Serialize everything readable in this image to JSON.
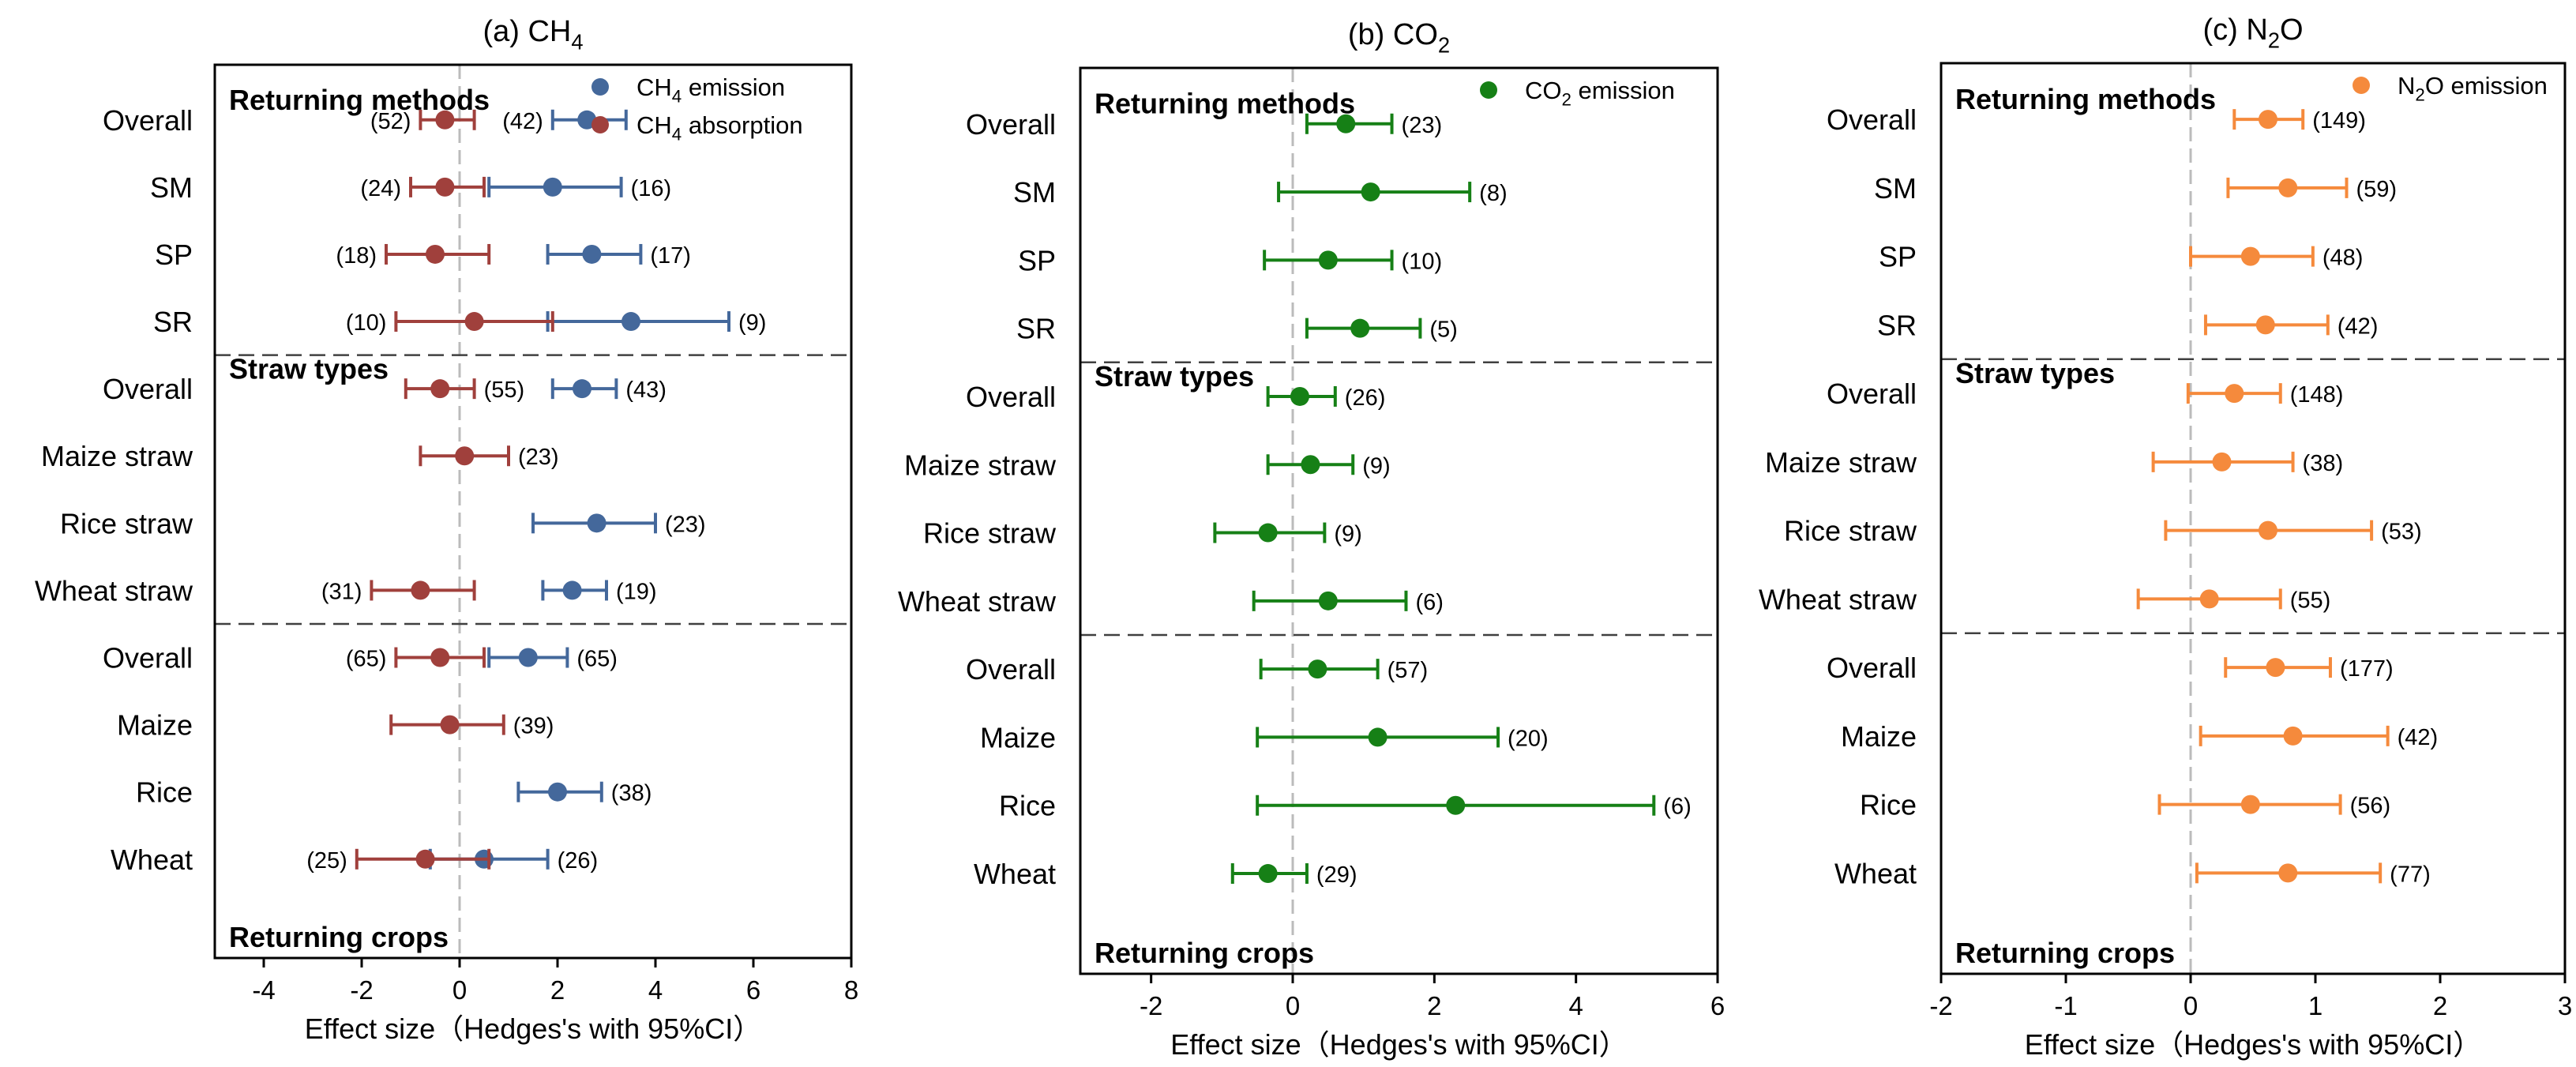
{
  "colors": {
    "ch4_emission": "#44689B",
    "ch4_absorption": "#A0403C",
    "co2_emission": "#168016",
    "n2o_emission": "#F58A3C",
    "zero_line": "#BBBBBB",
    "frame": "#000000",
    "separator": "#404040"
  },
  "chart_data": [
    {
      "type": "forest",
      "title": "(a) CH4",
      "title_parts": {
        "prefix": "(a) CH",
        "sub": "4"
      },
      "xlabel": "Effect size（Hedges's with 95%CI）",
      "xlim": [
        -5,
        8
      ],
      "xticks": [
        -4,
        -2,
        0,
        2,
        4,
        6,
        8
      ],
      "xtick_labels": [
        "-4",
        "-2",
        "0",
        "2",
        "4",
        "6",
        "8"
      ],
      "rows": [
        "Overall",
        "SM",
        "SP",
        "SR",
        "Overall",
        "Maize straw",
        "Rice straw",
        "Wheat straw",
        "Overall",
        "Maize",
        "Rice",
        "Wheat"
      ],
      "groups": [
        {
          "label": "Returning methods",
          "label_pos": "top",
          "rows": [
            0,
            3
          ]
        },
        {
          "label": "Straw types",
          "label_pos": "top",
          "rows": [
            4,
            7
          ]
        },
        {
          "label": "Returning crops",
          "label_pos": "bottom",
          "rows": [
            8,
            11
          ]
        }
      ],
      "legend": [
        {
          "prefix": "CH",
          "sub": "4",
          "suffix": " emission",
          "series": "emission"
        },
        {
          "prefix": "CH",
          "sub": "4",
          "suffix": " absorption",
          "series": "absorption"
        }
      ],
      "series": [
        {
          "name": "CH4 emission",
          "key": "emission",
          "color": "#44689B",
          "points": [
            {
              "row": 0,
              "mean": 2.6,
              "low": 1.9,
              "high": 3.4,
              "n": "(42)",
              "label_side": "left"
            },
            {
              "row": 1,
              "mean": 1.9,
              "low": 0.6,
              "high": 3.3,
              "n": "(16)",
              "label_side": "right"
            },
            {
              "row": 2,
              "mean": 2.7,
              "low": 1.8,
              "high": 3.7,
              "n": "(17)",
              "label_side": "right"
            },
            {
              "row": 3,
              "mean": 3.5,
              "low": 1.8,
              "high": 5.5,
              "n": "(9)",
              "label_side": "right"
            },
            {
              "row": 4,
              "mean": 2.5,
              "low": 1.9,
              "high": 3.2,
              "n": "(43)",
              "label_side": "right"
            },
            {
              "row": 6,
              "mean": 2.8,
              "low": 1.5,
              "high": 4.0,
              "n": "(23)",
              "label_side": "right"
            },
            {
              "row": 7,
              "mean": 2.3,
              "low": 1.7,
              "high": 3.0,
              "n": "(19)",
              "label_side": "right"
            },
            {
              "row": 8,
              "mean": 1.4,
              "low": 0.6,
              "high": 2.2,
              "n": "(65)",
              "label_side": "right"
            },
            {
              "row": 10,
              "mean": 2.0,
              "low": 1.2,
              "high": 2.9,
              "n": "(38)",
              "label_side": "right"
            },
            {
              "row": 11,
              "mean": 0.5,
              "low": -0.6,
              "high": 1.8,
              "n": "(26)",
              "label_side": "right"
            }
          ]
        },
        {
          "name": "CH4 absorption",
          "key": "absorption",
          "color": "#A0403C",
          "points": [
            {
              "row": 0,
              "mean": -0.3,
              "low": -0.8,
              "high": 0.3,
              "n": "(52)",
              "label_side": "left"
            },
            {
              "row": 1,
              "mean": -0.3,
              "low": -1.0,
              "high": 0.5,
              "n": "(24)",
              "label_side": "left"
            },
            {
              "row": 2,
              "mean": -0.5,
              "low": -1.5,
              "high": 0.6,
              "n": "(18)",
              "label_side": "left"
            },
            {
              "row": 3,
              "mean": 0.3,
              "low": -1.3,
              "high": 1.9,
              "n": "(10)",
              "label_side": "left"
            },
            {
              "row": 4,
              "mean": -0.4,
              "low": -1.1,
              "high": 0.3,
              "n": "(55)",
              "label_side": "right"
            },
            {
              "row": 5,
              "mean": 0.1,
              "low": -0.8,
              "high": 1.0,
              "n": "(23)",
              "label_side": "right"
            },
            {
              "row": 7,
              "mean": -0.8,
              "low": -1.8,
              "high": 0.3,
              "n": "(31)",
              "label_side": "left"
            },
            {
              "row": 8,
              "mean": -0.4,
              "low": -1.3,
              "high": 0.5,
              "n": "(65)",
              "label_side": "left"
            },
            {
              "row": 9,
              "mean": -0.2,
              "low": -1.4,
              "high": 0.9,
              "n": "(39)",
              "label_side": "right"
            },
            {
              "row": 11,
              "mean": -0.7,
              "low": -2.1,
              "high": 0.6,
              "n": "(25)",
              "label_side": "left"
            }
          ]
        }
      ]
    },
    {
      "type": "forest",
      "title": "(b) CO2",
      "title_parts": {
        "prefix": "(b) CO",
        "sub": "2"
      },
      "xlabel": "Effect size（Hedges's with 95%CI）",
      "xlim": [
        -3,
        6
      ],
      "xticks": [
        -2,
        0,
        2,
        4,
        6
      ],
      "xtick_labels": [
        "-2",
        "0",
        "2",
        "4",
        "6"
      ],
      "rows": [
        "Overall",
        "SM",
        "SP",
        "SR",
        "Overall",
        "Maize straw",
        "Rice straw",
        "Wheat straw",
        "Overall",
        "Maize",
        "Rice",
        "Wheat"
      ],
      "groups": [
        {
          "label": "Returning methods",
          "label_pos": "top",
          "rows": [
            0,
            3
          ]
        },
        {
          "label": "Straw types",
          "label_pos": "top",
          "rows": [
            4,
            7
          ]
        },
        {
          "label": "Returning crops",
          "label_pos": "bottom",
          "rows": [
            8,
            11
          ]
        }
      ],
      "legend": [
        {
          "prefix": "CO",
          "sub": "2",
          "suffix": " emission",
          "series": "emission"
        }
      ],
      "series": [
        {
          "name": "CO2 emission",
          "key": "emission",
          "color": "#168016",
          "points": [
            {
              "row": 0,
              "mean": 0.75,
              "low": 0.2,
              "high": 1.4,
              "n": "(23)",
              "label_side": "right"
            },
            {
              "row": 1,
              "mean": 1.1,
              "low": -0.2,
              "high": 2.5,
              "n": "(8)",
              "label_side": "right"
            },
            {
              "row": 2,
              "mean": 0.5,
              "low": -0.4,
              "high": 1.4,
              "n": "(10)",
              "label_side": "right"
            },
            {
              "row": 3,
              "mean": 0.95,
              "low": 0.2,
              "high": 1.8,
              "n": "(5)",
              "label_side": "right"
            },
            {
              "row": 4,
              "mean": 0.1,
              "low": -0.35,
              "high": 0.6,
              "n": "(26)",
              "label_side": "right"
            },
            {
              "row": 5,
              "mean": 0.25,
              "low": -0.35,
              "high": 0.85,
              "n": "(9)",
              "label_side": "right"
            },
            {
              "row": 6,
              "mean": -0.35,
              "low": -1.1,
              "high": 0.45,
              "n": "(9)",
              "label_side": "right"
            },
            {
              "row": 7,
              "mean": 0.5,
              "low": -0.55,
              "high": 1.6,
              "n": "(6)",
              "label_side": "right"
            },
            {
              "row": 8,
              "mean": 0.35,
              "low": -0.45,
              "high": 1.2,
              "n": "(57)",
              "label_side": "right"
            },
            {
              "row": 9,
              "mean": 1.2,
              "low": -0.5,
              "high": 2.9,
              "n": "(20)",
              "label_side": "right"
            },
            {
              "row": 10,
              "mean": 2.3,
              "low": -0.5,
              "high": 5.1,
              "n": "(6)",
              "label_side": "right"
            },
            {
              "row": 11,
              "mean": -0.35,
              "low": -0.85,
              "high": 0.2,
              "n": "(29)",
              "label_side": "right"
            }
          ]
        }
      ]
    },
    {
      "type": "forest",
      "title": "(c) N2O",
      "title_parts": {
        "prefix": "(c) N",
        "sub": "2",
        "suffix": "O"
      },
      "xlabel": "Effect size（Hedges's with 95%CI）",
      "xlim": [
        -2,
        3
      ],
      "xticks": [
        -2,
        -1,
        0,
        1,
        2,
        3
      ],
      "xtick_labels": [
        "-2",
        "-1",
        "0",
        "1",
        "2",
        "3"
      ],
      "rows": [
        "Overall",
        "SM",
        "SP",
        "SR",
        "Overall",
        "Maize straw",
        "Rice straw",
        "Wheat straw",
        "Overall",
        "Maize",
        "Rice",
        "Wheat"
      ],
      "groups": [
        {
          "label": "Returning methods",
          "label_pos": "top",
          "rows": [
            0,
            3
          ]
        },
        {
          "label": "Straw types",
          "label_pos": "top",
          "rows": [
            4,
            7
          ]
        },
        {
          "label": "Returning crops",
          "label_pos": "bottom",
          "rows": [
            8,
            11
          ]
        }
      ],
      "legend": [
        {
          "prefix": "N",
          "sub": "2",
          "suffix": "O emission",
          "series": "emission"
        }
      ],
      "series": [
        {
          "name": "N2O emission",
          "key": "emission",
          "color": "#F58A3C",
          "points": [
            {
              "row": 0,
              "mean": 0.62,
              "low": 0.35,
              "high": 0.9,
              "n": "(149)",
              "label_side": "right"
            },
            {
              "row": 1,
              "mean": 0.78,
              "low": 0.3,
              "high": 1.25,
              "n": "(59)",
              "label_side": "right"
            },
            {
              "row": 2,
              "mean": 0.48,
              "low": 0.0,
              "high": 0.98,
              "n": "(48)",
              "label_side": "right"
            },
            {
              "row": 3,
              "mean": 0.6,
              "low": 0.12,
              "high": 1.1,
              "n": "(42)",
              "label_side": "right"
            },
            {
              "row": 4,
              "mean": 0.35,
              "low": -0.02,
              "high": 0.72,
              "n": "(148)",
              "label_side": "right"
            },
            {
              "row": 5,
              "mean": 0.25,
              "low": -0.3,
              "high": 0.82,
              "n": "(38)",
              "label_side": "right"
            },
            {
              "row": 6,
              "mean": 0.62,
              "low": -0.2,
              "high": 1.45,
              "n": "(53)",
              "label_side": "right"
            },
            {
              "row": 7,
              "mean": 0.15,
              "low": -0.42,
              "high": 0.72,
              "n": "(55)",
              "label_side": "right"
            },
            {
              "row": 8,
              "mean": 0.68,
              "low": 0.28,
              "high": 1.12,
              "n": "(177)",
              "label_side": "right"
            },
            {
              "row": 9,
              "mean": 0.82,
              "low": 0.08,
              "high": 1.58,
              "n": "(42)",
              "label_side": "right"
            },
            {
              "row": 10,
              "mean": 0.48,
              "low": -0.25,
              "high": 1.2,
              "n": "(56)",
              "label_side": "right"
            },
            {
              "row": 11,
              "mean": 0.78,
              "low": 0.05,
              "high": 1.52,
              "n": "(77)",
              "label_side": "right"
            }
          ]
        }
      ]
    }
  ]
}
